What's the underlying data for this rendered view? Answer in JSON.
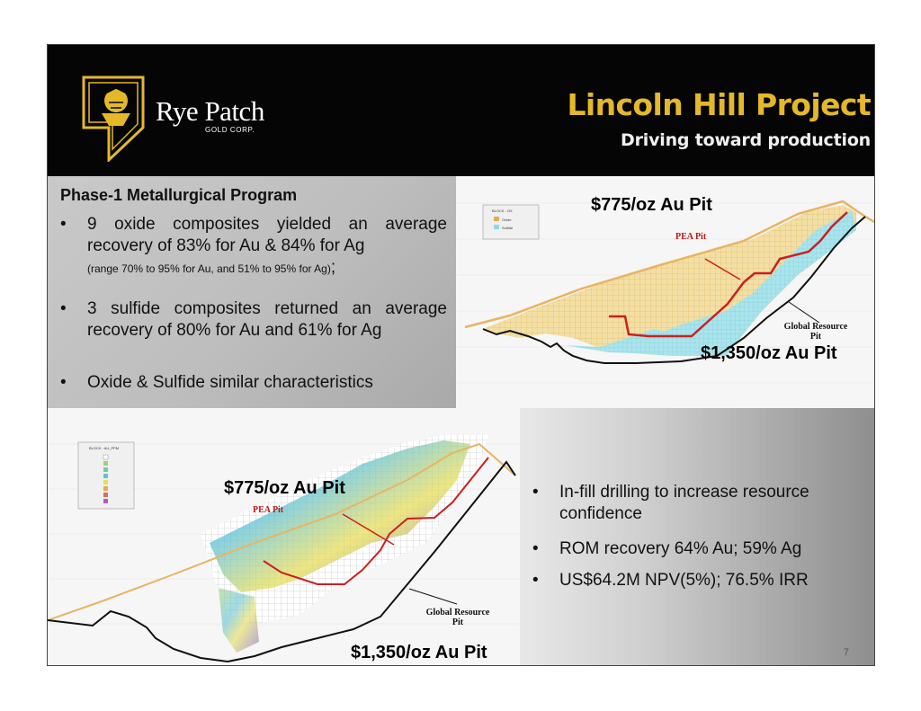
{
  "header": {
    "brand": "Rye Patch",
    "brand_sub": "GOLD CORP.",
    "title": "Lincoln Hill Project",
    "subtitle": "Driving toward production"
  },
  "metallurgy": {
    "heading": "Phase-1 Metallurgical Program",
    "bullet_char": "•",
    "b1_main": "9 oxide composites yielded an average recovery of 83% for Au & 84% for Ag",
    "b1_small": "(range 70% to 95% for Au, and 51% to 95% for Ag)",
    "b1_end": ";",
    "b2": "3 sulfide composites returned an average recovery of 80% for Au and 61% for Ag",
    "b3": "Oxide & Sulfide similar characteristics"
  },
  "section_top": {
    "pit_775": "$775/oz Au Pit",
    "pit_1350": "$1,350/oz Au Pit",
    "pea_pit": "PEA Pit",
    "global_resource_1": "Global Resource",
    "global_resource_2": "Pit",
    "legend_title": "BLOCK : OX",
    "legend_items": [
      "Oxide",
      "Sulfide"
    ]
  },
  "section_bottom": {
    "pit_775": "$775/oz Au Pit",
    "pit_1350": "$1,350/oz Au Pit",
    "pea_pit": "PEA Pit",
    "global_resource_1": "Global Resource",
    "global_resource_2": "Pit",
    "legend_title": "BLOCK : AU_PPM"
  },
  "highlights": {
    "items": [
      "In-fill drilling to increase resource confidence",
      "ROM recovery 64% Au; 59% Ag",
      "US$64.2M NPV(5%); 76.5% IRR"
    ]
  },
  "page_number": "7",
  "colors": {
    "header_bg": "#050505",
    "title_gold": "#e4b829",
    "oxide": "#f3dfa6",
    "sulfide": "#a9e4ec",
    "pea_line": "#cc1f1f"
  }
}
